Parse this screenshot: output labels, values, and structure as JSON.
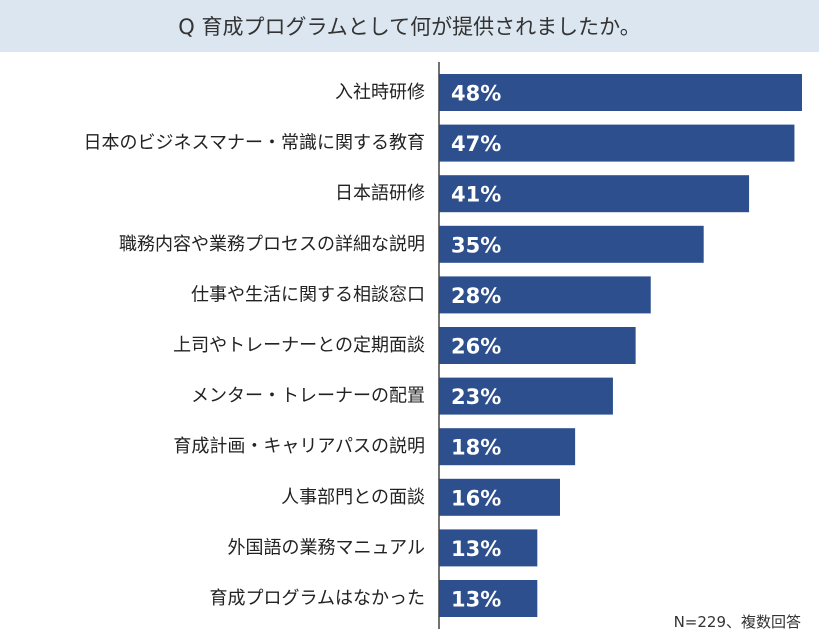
{
  "title": "Q  育成プログラムとして何が提供されましたか。",
  "note": "N=229、複数回答",
  "chart_data": {
    "type": "bar",
    "orientation": "horizontal",
    "categories": [
      "入社時研修",
      "日本のビジネスマナー・常識に関する教育",
      "日本語研修",
      "職務内容や業務プロセスの詳細な説明",
      "仕事や生活に関する相談窓口",
      "上司やトレーナーとの定期面談",
      "メンター・トレーナーの配置",
      "育成計画・キャリアパスの説明",
      "人事部門との面談",
      "外国語の業務マニュアル",
      "育成プログラムはなかった"
    ],
    "values": [
      48,
      47,
      41,
      35,
      28,
      26,
      23,
      18,
      16,
      13,
      13
    ],
    "value_labels": [
      "48%",
      "47%",
      "41%",
      "35%",
      "28%",
      "26%",
      "23%",
      "18%",
      "16%",
      "13%",
      "13%"
    ],
    "unit": "%",
    "bar_color": "#2d4f8e",
    "xlim": [
      0,
      48
    ],
    "grid": false
  }
}
